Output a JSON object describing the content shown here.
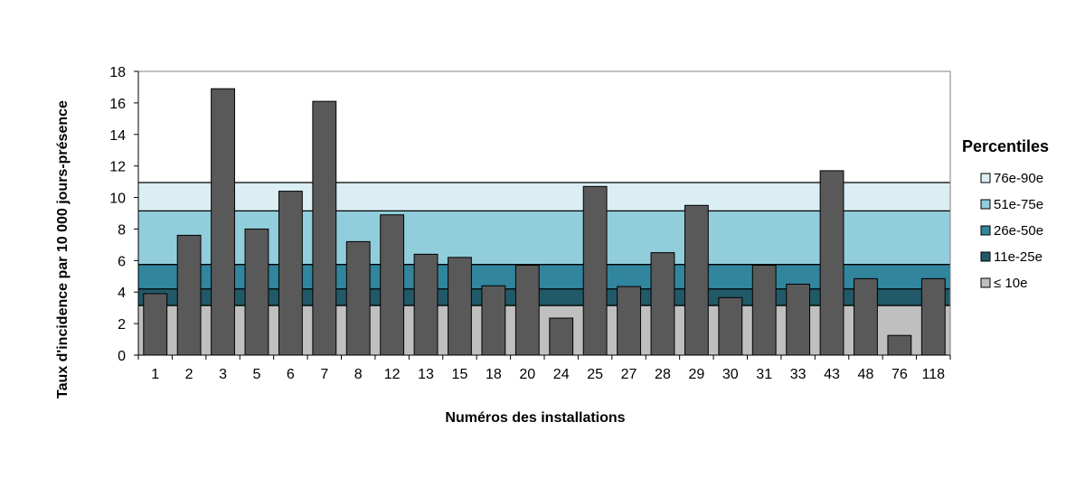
{
  "chart_data": {
    "type": "bar",
    "xlabel": "Numéros des installations",
    "ylabel": "Taux d'incidence par 10 000 jours-présence",
    "ylim": [
      0,
      18
    ],
    "yticks": [
      0,
      2,
      4,
      6,
      8,
      10,
      12,
      14,
      16,
      18
    ],
    "grid": false,
    "categories": [
      "1",
      "2",
      "3",
      "5",
      "6",
      "7",
      "8",
      "12",
      "13",
      "15",
      "18",
      "20",
      "24",
      "25",
      "27",
      "28",
      "29",
      "30",
      "31",
      "33",
      "43",
      "48",
      "76",
      "118"
    ],
    "values": [
      3.9,
      7.6,
      16.9,
      8.0,
      10.4,
      16.1,
      7.2,
      8.9,
      6.4,
      6.2,
      4.4,
      5.7,
      2.35,
      10.7,
      4.35,
      6.5,
      9.5,
      3.65,
      5.7,
      4.5,
      11.7,
      4.85,
      1.25,
      4.85
    ],
    "bar_color": "#595959",
    "percentile_bands": [
      {
        "label": "76e-90e",
        "from": 9.15,
        "to": 10.95,
        "color": "#daeef3"
      },
      {
        "label": "51e-75e",
        "from": 5.75,
        "to": 9.15,
        "color": "#92cddc"
      },
      {
        "label": "26e-50e",
        "from": 4.2,
        "to": 5.75,
        "color": "#31859c"
      },
      {
        "label": "11e-25e",
        "from": 3.15,
        "to": 4.2,
        "color": "#215968"
      },
      {
        "label": "≤ 10e",
        "from": 0,
        "to": 3.15,
        "color": "#bfbfbf"
      }
    ],
    "legend": {
      "title": "Percentiles",
      "position": "right"
    }
  }
}
